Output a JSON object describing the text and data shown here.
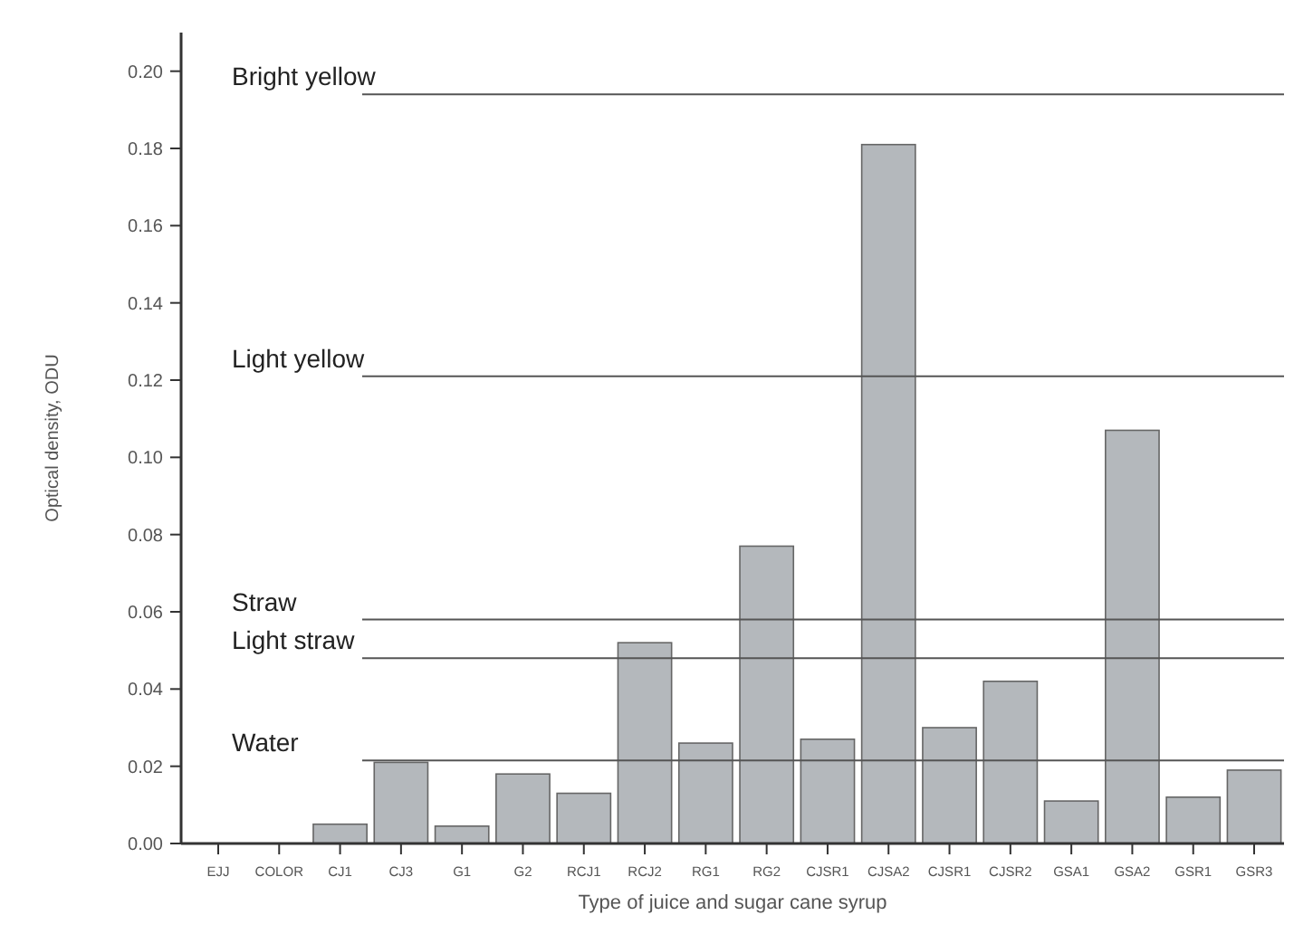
{
  "chart_data": {
    "type": "bar",
    "xlabel": "Type of juice and sugar cane syrup",
    "ylabel": "Optical density, ODU",
    "categories": [
      "EJJ",
      "COLOR",
      "CJ1",
      "CJ3",
      "G1",
      "G2",
      "RCJ1",
      "RCJ2",
      "RG1",
      "RG2",
      "CJSR1",
      "CJSA2",
      "CJSR1",
      "CJSR2",
      "GSA1",
      "GSA2",
      "GSR1",
      "GSR3"
    ],
    "values": [
      0,
      0,
      0.005,
      0.021,
      0.0045,
      0.018,
      0.013,
      0.052,
      0.026,
      0.077,
      0.027,
      0.181,
      0.03,
      0.042,
      0.011,
      0.107,
      0.012,
      0.019
    ],
    "color": "#b4b8bc",
    "ylim": [
      0,
      0.21
    ],
    "yticks": [
      {
        "value": 0,
        "label": "0.00"
      },
      {
        "value": 0.02,
        "label": "0.02"
      },
      {
        "value": 0.04,
        "label": "0.04"
      },
      {
        "value": 0.06,
        "label": "0.06"
      },
      {
        "value": 0.08,
        "label": "0.08"
      },
      {
        "value": 0.1,
        "label": "0.10"
      },
      {
        "value": 0.12,
        "label": "0.12"
      },
      {
        "value": 0.14,
        "label": "0.14"
      },
      {
        "value": 0.16,
        "label": "0.16"
      },
      {
        "value": 0.18,
        "label": "0.18"
      },
      {
        "value": 0.2,
        "label": "0.20"
      }
    ],
    "ref_lines": [
      {
        "axis": "y",
        "value": 0.194,
        "label": "Bright yellow",
        "color": "#555555"
      },
      {
        "axis": "y",
        "value": 0.121,
        "label": "Light yellow",
        "color": "#555555"
      },
      {
        "axis": "y",
        "value": 0.058,
        "label": "Straw",
        "color": "#555555"
      },
      {
        "axis": "y",
        "value": 0.048,
        "label": "Light straw",
        "color": "#555555"
      },
      {
        "axis": "y",
        "value": 0.0215,
        "label": "Water",
        "color": "#555555"
      }
    ],
    "grid": false
  }
}
